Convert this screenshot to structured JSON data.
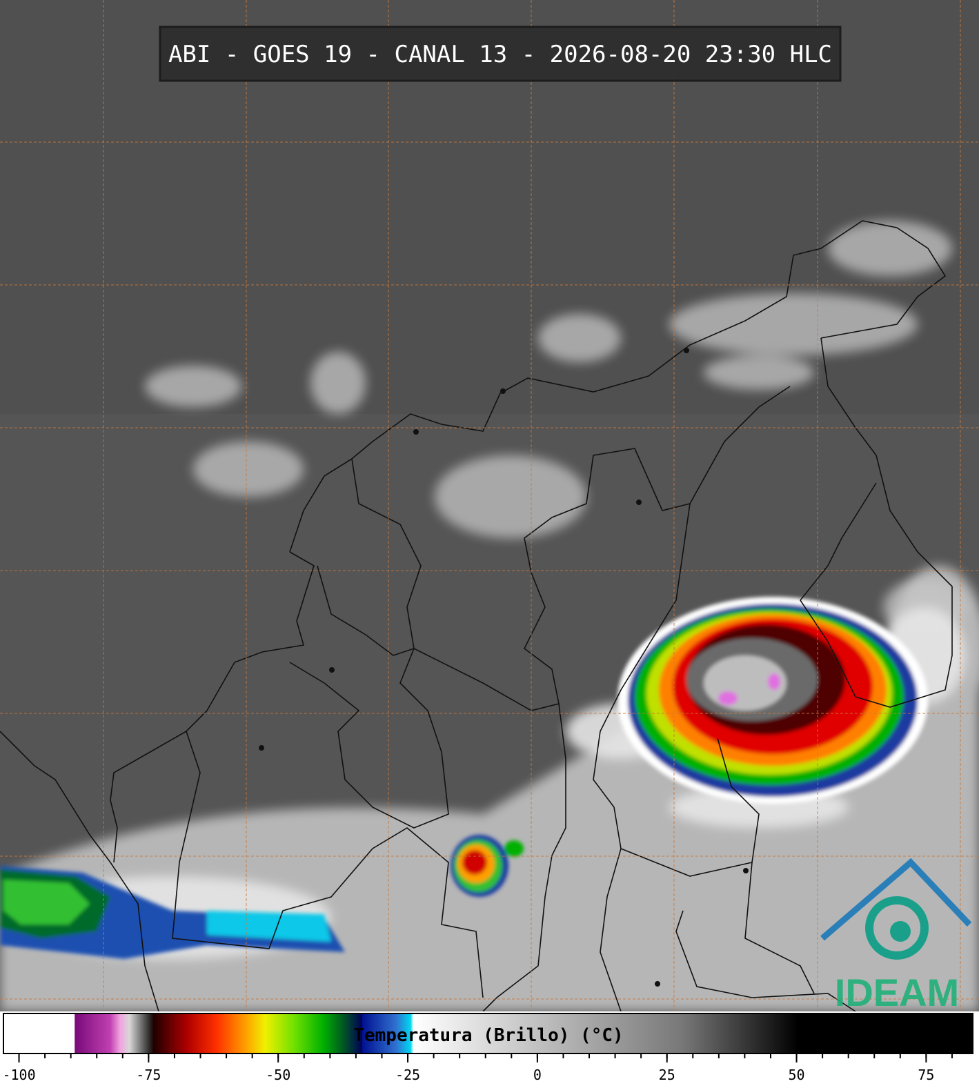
{
  "title": "ABI - GOES 19 - CANAL 13 - 2026-08-20 23:30 HLC",
  "colorbar": {
    "label": "Temperatura (Brillo) (°C)",
    "lim": [
      -103,
      84
    ],
    "ticks": [
      -100,
      -75,
      -50,
      -25,
      0,
      25,
      50,
      75
    ],
    "minor_ticks": [
      -100,
      -95,
      -90,
      -85,
      -80,
      -75,
      -70,
      -65,
      -60,
      -55,
      -50,
      -45,
      -40,
      -35,
      -30,
      -25,
      -20,
      -15,
      -10,
      -5,
      0,
      5,
      10,
      15,
      20,
      25,
      30,
      35,
      40,
      45,
      50,
      55,
      60,
      65,
      70,
      75,
      80
    ]
  },
  "logo": "IDEAM"
}
